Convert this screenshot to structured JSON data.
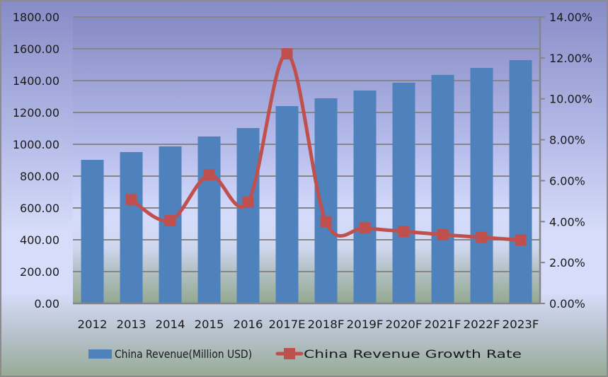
{
  "chart_data": {
    "type": "bar",
    "title": "",
    "xlabel": "",
    "ylabel": "",
    "categories": [
      "2012",
      "2013",
      "2014",
      "2015",
      "2016",
      "2017E",
      "2018F",
      "2019F",
      "2020F",
      "2021F",
      "2022F",
      "2023F"
    ],
    "series": [
      {
        "name": "China Revenue(Million USD)",
        "type": "bar",
        "axis": "left",
        "color": "#4f81bd",
        "values": [
          902,
          951,
          987,
          1049,
          1102,
          1240,
          1289,
          1338,
          1387,
          1436,
          1480,
          1529
        ]
      },
      {
        "name": "China Revenue Growth Rate",
        "type": "line",
        "axis": "right",
        "smooth": true,
        "marker": "square",
        "color": "#c0504d",
        "values": [
          null,
          5.07,
          4.05,
          6.28,
          4.95,
          12.2,
          4.0,
          3.69,
          3.52,
          3.36,
          3.23,
          3.1
        ]
      }
    ],
    "ylim": [
      0,
      1800
    ],
    "y_ticks": [
      "0.00",
      "200.00",
      "400.00",
      "600.00",
      "800.00",
      "1000.00",
      "1200.00",
      "1400.00",
      "1600.00",
      "1800.00"
    ],
    "y_tick_values": [
      0,
      200,
      400,
      600,
      800,
      1000,
      1200,
      1400,
      1600,
      1800
    ],
    "y2lim": [
      0,
      14
    ],
    "y2_ticks": [
      "0.00%",
      "2.00%",
      "4.00%",
      "6.00%",
      "8.00%",
      "10.00%",
      "12.00%",
      "14.00%"
    ],
    "y2_tick_values": [
      0,
      2,
      4,
      6,
      8,
      10,
      12,
      14
    ],
    "grid": true,
    "legend": "bottom"
  }
}
